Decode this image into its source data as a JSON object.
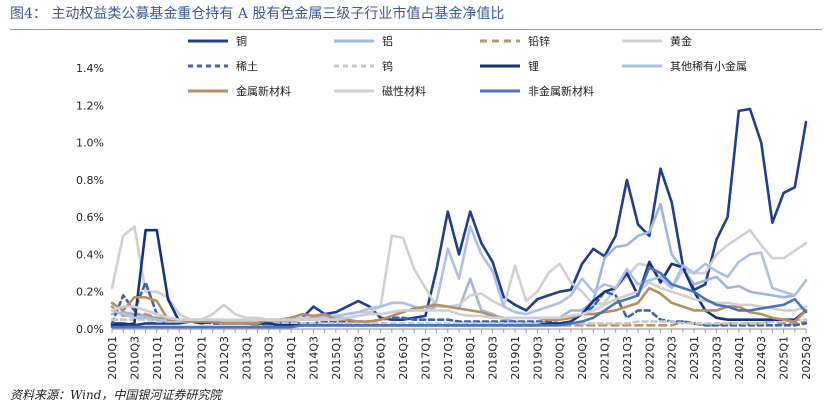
{
  "figure": {
    "title": "图4：  主动权益类公募基金重仓持有 A 股有色金属三级子行业市值占基金净值比",
    "source": "资料来源：Wind，中国银河证券研究院"
  },
  "chart_data": {
    "type": "line",
    "title": "图4：  主动权益类公募基金重仓持有 A 股有色金属三级子行业市值占基金净值比",
    "xlabel": "",
    "ylabel": "",
    "ylim": [
      0,
      1.4
    ],
    "y_ticks": [
      "0.0%",
      "0.2%",
      "0.4%",
      "0.6%",
      "0.8%",
      "1.0%",
      "1.2%",
      "1.4%"
    ],
    "grid": false,
    "legend_position": "top",
    "x": [
      "2010Q1",
      "2010Q2",
      "2010Q3",
      "2010Q4",
      "2011Q1",
      "2011Q2",
      "2011Q3",
      "2011Q4",
      "2012Q1",
      "2012Q2",
      "2012Q3",
      "2012Q4",
      "2013Q1",
      "2013Q2",
      "2013Q3",
      "2013Q4",
      "2014Q1",
      "2014Q2",
      "2014Q3",
      "2014Q4",
      "2015Q1",
      "2015Q2",
      "2015Q3",
      "2015Q4",
      "2016Q1",
      "2016Q2",
      "2016Q3",
      "2016Q4",
      "2017Q1",
      "2017Q2",
      "2017Q3",
      "2017Q4",
      "2018Q1",
      "2018Q2",
      "2018Q3",
      "2018Q4",
      "2019Q1",
      "2019Q2",
      "2019Q3",
      "2019Q4",
      "2020Q1",
      "2020Q2",
      "2020Q3",
      "2020Q4",
      "2021Q1",
      "2021Q2",
      "2021Q3",
      "2021Q4",
      "2022Q1",
      "2022Q2",
      "2022Q3",
      "2022Q4",
      "2023Q1",
      "2023Q2",
      "2023Q3",
      "2023Q4",
      "2024Q1",
      "2024Q2",
      "2024Q3",
      "2024Q4",
      "2025Q1",
      "2025Q2",
      "2025Q3"
    ],
    "x_tick_labels": [
      "2010Q1",
      "2010Q3",
      "2011Q1",
      "2011Q3",
      "2012Q1",
      "2012Q3",
      "2013Q1",
      "2013Q3",
      "2014Q1",
      "2014Q3",
      "2015Q1",
      "2015Q3",
      "2016Q1",
      "2016Q3",
      "2017Q1",
      "2017Q3",
      "2018Q1",
      "2018Q3",
      "2019Q1",
      "2019Q3",
      "2020Q1",
      "2020Q3",
      "2021Q1",
      "2021Q3",
      "2022Q1",
      "2022Q3",
      "2023Q1",
      "2023Q3",
      "2024Q1",
      "2024Q3",
      "2025Q1",
      "2025Q3"
    ],
    "series": [
      {
        "name": "铜",
        "color": "#1f3e8f",
        "dash": "",
        "width": 2.6,
        "values": [
          0.03,
          0.03,
          0.02,
          0.03,
          0.03,
          0.03,
          0.03,
          0.04,
          0.05,
          0.04,
          0.03,
          0.04,
          0.03,
          0.03,
          0.03,
          0.04,
          0.05,
          0.06,
          0.12,
          0.08,
          0.09,
          0.12,
          0.15,
          0.12,
          0.06,
          0.05,
          0.05,
          0.06,
          0.07,
          0.32,
          0.63,
          0.4,
          0.63,
          0.46,
          0.36,
          0.17,
          0.13,
          0.1,
          0.16,
          0.18,
          0.2,
          0.21,
          0.35,
          0.43,
          0.39,
          0.5,
          0.8,
          0.56,
          0.5,
          0.86,
          0.68,
          0.34,
          0.21,
          0.24,
          0.48,
          0.6,
          1.17,
          1.18,
          1.0,
          0.57,
          0.73,
          0.76,
          1.11
        ]
      },
      {
        "name": "铝",
        "color": "#9db6e0",
        "dash": "",
        "width": 2.6,
        "values": [
          0.08,
          0.09,
          0.08,
          0.07,
          0.06,
          0.05,
          0.05,
          0.05,
          0.05,
          0.05,
          0.04,
          0.04,
          0.04,
          0.04,
          0.04,
          0.04,
          0.04,
          0.05,
          0.05,
          0.05,
          0.06,
          0.06,
          0.07,
          0.08,
          0.08,
          0.09,
          0.1,
          0.1,
          0.1,
          0.12,
          0.12,
          0.11,
          0.27,
          0.1,
          0.08,
          0.05,
          0.04,
          0.03,
          0.03,
          0.04,
          0.06,
          0.1,
          0.1,
          0.15,
          0.38,
          0.44,
          0.45,
          0.5,
          0.52,
          0.67,
          0.4,
          0.32,
          0.24,
          0.26,
          0.28,
          0.22,
          0.23,
          0.2,
          0.19,
          0.18,
          0.17,
          0.18,
          0.26
        ]
      },
      {
        "name": "铅锌",
        "color": "#b8976b",
        "dash": "7,5",
        "width": 2.6,
        "values": [
          0.12,
          0.07,
          0.08,
          0.08,
          0.06,
          0.05,
          0.04,
          0.04,
          0.04,
          0.03,
          0.03,
          0.03,
          0.03,
          0.02,
          0.02,
          0.02,
          0.02,
          0.02,
          0.02,
          0.02,
          0.02,
          0.02,
          0.02,
          0.02,
          0.02,
          0.02,
          0.02,
          0.02,
          0.02,
          0.02,
          0.02,
          0.02,
          0.02,
          0.02,
          0.02,
          0.02,
          0.02,
          0.02,
          0.02,
          0.02,
          0.02,
          0.02,
          0.02,
          0.02,
          0.02,
          0.02,
          0.02,
          0.02,
          0.02,
          0.02,
          0.02,
          0.04,
          0.03,
          0.02,
          0.02,
          0.03,
          0.03,
          0.03,
          0.03,
          0.04,
          0.03,
          0.03,
          0.04
        ]
      },
      {
        "name": "黄金",
        "color": "#d0d0d0",
        "dash": "",
        "width": 2.6,
        "values": [
          0.22,
          0.5,
          0.55,
          0.2,
          0.2,
          0.17,
          0.08,
          0.05,
          0.05,
          0.08,
          0.13,
          0.08,
          0.06,
          0.06,
          0.05,
          0.05,
          0.05,
          0.06,
          0.06,
          0.06,
          0.07,
          0.08,
          0.09,
          0.09,
          0.12,
          0.5,
          0.49,
          0.32,
          0.22,
          0.12,
          0.12,
          0.13,
          0.18,
          0.19,
          0.15,
          0.12,
          0.34,
          0.15,
          0.2,
          0.3,
          0.35,
          0.25,
          0.2,
          0.13,
          0.14,
          0.22,
          0.28,
          0.35,
          0.34,
          0.27,
          0.22,
          0.31,
          0.3,
          0.3,
          0.4,
          0.45,
          0.49,
          0.53,
          0.45,
          0.38,
          0.38,
          0.42,
          0.46
        ]
      },
      {
        "name": "稀土",
        "color": "#3a63b8",
        "dash": "5,4",
        "width": 2.6,
        "values": [
          0.03,
          0.18,
          0.1,
          0.25,
          0.08,
          0.06,
          0.04,
          0.04,
          0.04,
          0.03,
          0.03,
          0.03,
          0.03,
          0.03,
          0.03,
          0.03,
          0.03,
          0.03,
          0.03,
          0.04,
          0.04,
          0.04,
          0.04,
          0.04,
          0.05,
          0.06,
          0.06,
          0.05,
          0.05,
          0.05,
          0.05,
          0.04,
          0.04,
          0.04,
          0.04,
          0.04,
          0.04,
          0.04,
          0.04,
          0.04,
          0.05,
          0.06,
          0.08,
          0.12,
          0.2,
          0.18,
          0.06,
          0.1,
          0.1,
          0.05,
          0.04,
          0.04,
          0.03,
          0.02,
          0.02,
          0.02,
          0.02,
          0.02,
          0.02,
          0.02,
          0.02,
          0.02,
          0.03
        ]
      },
      {
        "name": "钨",
        "color": "#c8c8c8",
        "dash": "5,4",
        "width": 2.6,
        "values": [
          0.05,
          0.05,
          0.05,
          0.05,
          0.04,
          0.04,
          0.04,
          0.04,
          0.04,
          0.04,
          0.03,
          0.03,
          0.03,
          0.03,
          0.03,
          0.03,
          0.03,
          0.03,
          0.03,
          0.03,
          0.03,
          0.03,
          0.03,
          0.03,
          0.03,
          0.03,
          0.03,
          0.03,
          0.03,
          0.03,
          0.03,
          0.03,
          0.03,
          0.03,
          0.03,
          0.03,
          0.03,
          0.03,
          0.03,
          0.03,
          0.03,
          0.03,
          0.03,
          0.03,
          0.03,
          0.03,
          0.03,
          0.04,
          0.04,
          0.04,
          0.04,
          0.03,
          0.03,
          0.03,
          0.03,
          0.03,
          0.03,
          0.03,
          0.03,
          0.04,
          0.04,
          0.05,
          0.05
        ]
      },
      {
        "name": "锂",
        "color": "#12347e",
        "dash": "",
        "width": 2.6,
        "values": [
          0.02,
          0.02,
          0.03,
          0.53,
          0.53,
          0.16,
          0.04,
          0.04,
          0.03,
          0.04,
          0.03,
          0.04,
          0.03,
          0.03,
          0.03,
          0.02,
          0.02,
          0.02,
          0.02,
          0.02,
          0.02,
          0.02,
          0.02,
          0.02,
          0.02,
          0.02,
          0.02,
          0.02,
          0.02,
          0.02,
          0.02,
          0.02,
          0.02,
          0.02,
          0.02,
          0.02,
          0.02,
          0.02,
          0.02,
          0.03,
          0.03,
          0.04,
          0.08,
          0.15,
          0.2,
          0.22,
          0.3,
          0.18,
          0.36,
          0.25,
          0.35,
          0.33,
          0.2,
          0.1,
          0.06,
          0.05,
          0.05,
          0.05,
          0.05,
          0.05,
          0.05,
          0.05,
          0.1
        ]
      },
      {
        "name": "其他稀有小金属",
        "color": "#a9c1e8",
        "dash": "",
        "width": 2.6,
        "values": [
          0.1,
          0.08,
          0.06,
          0.06,
          0.05,
          0.04,
          0.04,
          0.04,
          0.04,
          0.04,
          0.04,
          0.04,
          0.04,
          0.04,
          0.05,
          0.05,
          0.05,
          0.05,
          0.06,
          0.07,
          0.07,
          0.08,
          0.09,
          0.11,
          0.12,
          0.14,
          0.14,
          0.12,
          0.1,
          0.15,
          0.43,
          0.27,
          0.55,
          0.4,
          0.31,
          0.12,
          0.09,
          0.08,
          0.1,
          0.12,
          0.14,
          0.18,
          0.27,
          0.2,
          0.24,
          0.22,
          0.32,
          0.24,
          0.26,
          0.28,
          0.22,
          0.34,
          0.3,
          0.35,
          0.31,
          0.28,
          0.36,
          0.4,
          0.41,
          0.22,
          0.2,
          0.18,
          0.26
        ]
      },
      {
        "name": "金属新材料",
        "color": "#b88d60",
        "dash": "",
        "width": 2.6,
        "values": [
          0.14,
          0.1,
          0.17,
          0.17,
          0.15,
          0.05,
          0.05,
          0.04,
          0.04,
          0.04,
          0.03,
          0.03,
          0.03,
          0.03,
          0.05,
          0.05,
          0.06,
          0.08,
          0.07,
          0.08,
          0.05,
          0.05,
          0.04,
          0.04,
          0.05,
          0.07,
          0.09,
          0.11,
          0.12,
          0.13,
          0.12,
          0.11,
          0.1,
          0.09,
          0.07,
          0.06,
          0.06,
          0.06,
          0.06,
          0.05,
          0.05,
          0.06,
          0.08,
          0.08,
          0.09,
          0.1,
          0.12,
          0.14,
          0.22,
          0.19,
          0.14,
          0.12,
          0.1,
          0.1,
          0.1,
          0.12,
          0.12,
          0.09,
          0.08,
          0.06,
          0.05,
          0.04,
          0.1
        ]
      },
      {
        "name": "磁性材料",
        "color": "#cfcfcf",
        "dash": "",
        "width": 2.6,
        "values": [
          0.1,
          0.12,
          0.12,
          0.1,
          0.08,
          0.06,
          0.05,
          0.05,
          0.05,
          0.05,
          0.05,
          0.05,
          0.05,
          0.05,
          0.05,
          0.05,
          0.05,
          0.05,
          0.05,
          0.05,
          0.05,
          0.06,
          0.07,
          0.08,
          0.08,
          0.09,
          0.1,
          0.1,
          0.1,
          0.1,
          0.1,
          0.08,
          0.07,
          0.07,
          0.06,
          0.06,
          0.06,
          0.06,
          0.06,
          0.06,
          0.06,
          0.07,
          0.08,
          0.1,
          0.13,
          0.16,
          0.18,
          0.2,
          0.25,
          0.22,
          0.2,
          0.18,
          0.16,
          0.15,
          0.14,
          0.14,
          0.13,
          0.13,
          0.12,
          0.11,
          0.1,
          0.1,
          0.12
        ]
      },
      {
        "name": "非金属新材料",
        "color": "#4a72c0",
        "dash": "",
        "width": 2.6,
        "values": [
          0.01,
          0.01,
          0.01,
          0.01,
          0.01,
          0.01,
          0.01,
          0.01,
          0.01,
          0.01,
          0.01,
          0.01,
          0.01,
          0.01,
          0.01,
          0.01,
          0.01,
          0.02,
          0.02,
          0.02,
          0.02,
          0.02,
          0.02,
          0.02,
          0.02,
          0.02,
          0.02,
          0.02,
          0.02,
          0.02,
          0.02,
          0.02,
          0.02,
          0.02,
          0.02,
          0.02,
          0.02,
          0.02,
          0.02,
          0.02,
          0.02,
          0.03,
          0.04,
          0.06,
          0.1,
          0.14,
          0.16,
          0.18,
          0.33,
          0.3,
          0.24,
          0.22,
          0.2,
          0.16,
          0.13,
          0.12,
          0.1,
          0.1,
          0.11,
          0.12,
          0.13,
          0.16,
          0.09
        ]
      }
    ]
  }
}
